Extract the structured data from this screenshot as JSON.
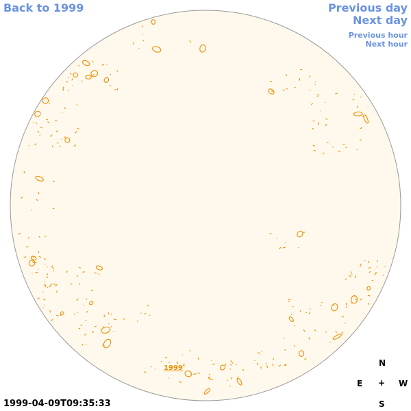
{
  "nav": {
    "back_label": "Back to 1999",
    "prev_day_label": "Previous day",
    "next_day_label": "Next day",
    "prev_hour_label": "Previous hour",
    "next_hour_label": "Next hour"
  },
  "map": {
    "disk_color": "#fef9ec",
    "contour_color": "#f08c00",
    "year_marker": "1999"
  },
  "timestamp": "1999-04-09T09:35:33",
  "compass": {
    "north": "N",
    "east": "E",
    "center": "+",
    "west": "W",
    "south": "S"
  }
}
